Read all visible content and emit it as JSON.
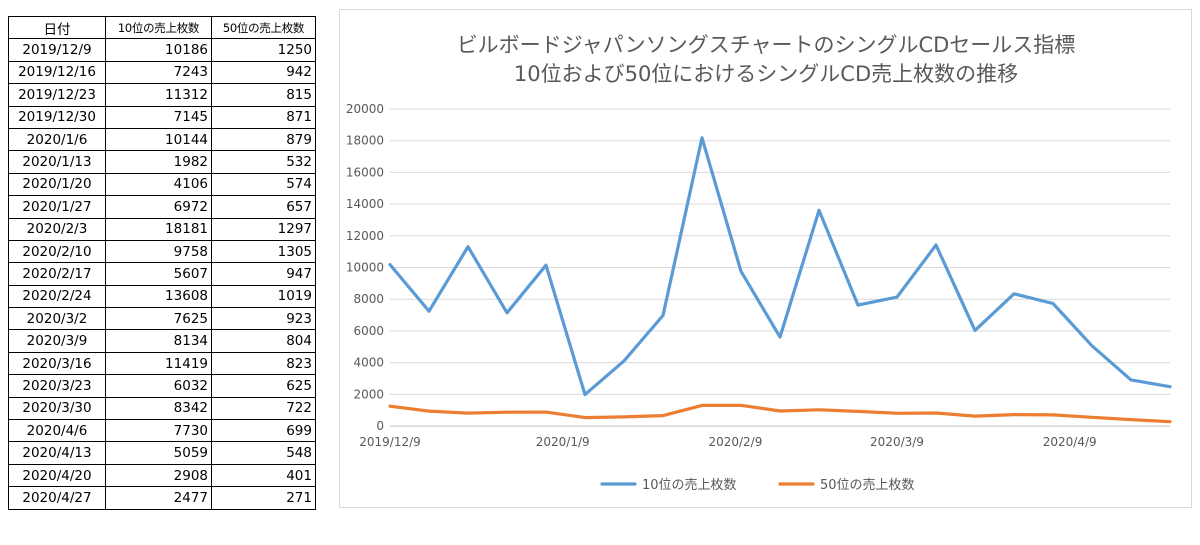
{
  "table": {
    "headers": [
      "日付",
      "10位の売上枚数",
      "50位の売上枚数"
    ],
    "rows": [
      [
        "2019/12/9",
        "10186",
        "1250"
      ],
      [
        "2019/12/16",
        "7243",
        "942"
      ],
      [
        "2019/12/23",
        "11312",
        "815"
      ],
      [
        "2019/12/30",
        "7145",
        "871"
      ],
      [
        "2020/1/6",
        "10144",
        "879"
      ],
      [
        "2020/1/13",
        "1982",
        "532"
      ],
      [
        "2020/1/20",
        "4106",
        "574"
      ],
      [
        "2020/1/27",
        "6972",
        "657"
      ],
      [
        "2020/2/3",
        "18181",
        "1297"
      ],
      [
        "2020/2/10",
        "9758",
        "1305"
      ],
      [
        "2020/2/17",
        "5607",
        "947"
      ],
      [
        "2020/2/24",
        "13608",
        "1019"
      ],
      [
        "2020/3/2",
        "7625",
        "923"
      ],
      [
        "2020/3/9",
        "8134",
        "804"
      ],
      [
        "2020/3/16",
        "11419",
        "823"
      ],
      [
        "2020/3/23",
        "6032",
        "625"
      ],
      [
        "2020/3/30",
        "8342",
        "722"
      ],
      [
        "2020/4/6",
        "7730",
        "699"
      ],
      [
        "2020/4/13",
        "5059",
        "548"
      ],
      [
        "2020/4/20",
        "2908",
        "401"
      ],
      [
        "2020/4/27",
        "2477",
        "271"
      ]
    ]
  },
  "chart_data": {
    "type": "line",
    "title": [
      "ビルボードジャパンソングスチャートのシングルCDセールス指標",
      "10位および50位におけるシングルCD売上枚数の推移"
    ],
    "x": [
      "2019/12/9",
      "2019/12/16",
      "2019/12/23",
      "2019/12/30",
      "2020/1/6",
      "2020/1/13",
      "2020/1/20",
      "2020/1/27",
      "2020/2/3",
      "2020/2/10",
      "2020/2/17",
      "2020/2/24",
      "2020/3/2",
      "2020/3/9",
      "2020/3/16",
      "2020/3/23",
      "2020/3/30",
      "2020/4/6",
      "2020/4/13",
      "2020/4/20",
      "2020/4/27"
    ],
    "series": [
      {
        "name": "10位の売上枚数",
        "color": "#5b9bd5",
        "values": [
          10186,
          7243,
          11312,
          7145,
          10144,
          1982,
          4106,
          6972,
          18181,
          9758,
          5607,
          13608,
          7625,
          8134,
          11419,
          6032,
          8342,
          7730,
          5059,
          2908,
          2477
        ]
      },
      {
        "name": "50位の売上枚数",
        "color": "#ed7d31",
        "values": [
          1250,
          942,
          815,
          871,
          879,
          532,
          574,
          657,
          1297,
          1305,
          947,
          1019,
          923,
          804,
          823,
          625,
          722,
          699,
          548,
          401,
          271
        ]
      }
    ],
    "ylim": [
      0,
      20000
    ],
    "yticks": [
      0,
      2000,
      4000,
      6000,
      8000,
      10000,
      12000,
      14000,
      16000,
      18000,
      20000
    ],
    "xaxis_range": [
      "2019/12/9",
      "2020/4/27"
    ],
    "xtick_labels": [
      "2019/12/9",
      "2020/1/9",
      "2020/2/9",
      "2020/3/9",
      "2020/4/9"
    ],
    "grid": "horizontal",
    "legend": "bottom"
  }
}
